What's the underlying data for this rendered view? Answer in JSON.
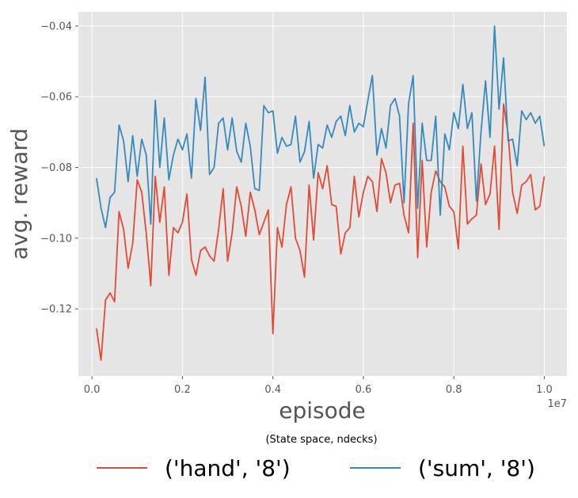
{
  "chart_data": {
    "type": "line",
    "xlabel": "episode",
    "ylabel": "avg. reward",
    "x_offset_label": "1e7",
    "xlim": [
      -0.03,
      1.05
    ],
    "ylim": [
      -0.139,
      -0.036
    ],
    "x_ticks": [
      0.0,
      0.2,
      0.4,
      0.6,
      0.8,
      1.0
    ],
    "x_tick_labels": [
      "0.0",
      "0.2",
      "0.4",
      "0.6",
      "0.8",
      "1.0"
    ],
    "y_ticks": [
      -0.12,
      -0.1,
      -0.08,
      -0.06,
      -0.04
    ],
    "y_tick_labels": [
      "−0.12",
      "−0.10",
      "−0.08",
      "−0.06",
      "−0.04"
    ],
    "grid": true,
    "legend": {
      "title": "(State space, ndecks)",
      "placement": "bottom-center"
    },
    "series": [
      {
        "name": "('hand', '8')",
        "color": "#E24A33",
        "points": [
          [
            0.01,
            -0.1255
          ],
          [
            0.02,
            -0.1345
          ],
          [
            0.03,
            -0.1175
          ],
          [
            0.04,
            -0.1155
          ],
          [
            0.05,
            -0.118
          ],
          [
            0.06,
            -0.0925
          ],
          [
            0.07,
            -0.0975
          ],
          [
            0.08,
            -0.1085
          ],
          [
            0.09,
            -0.1015
          ],
          [
            0.1,
            -0.0835
          ],
          [
            0.11,
            -0.087
          ],
          [
            0.12,
            -0.0985
          ],
          [
            0.13,
            -0.1135
          ],
          [
            0.14,
            -0.0825
          ],
          [
            0.15,
            -0.0955
          ],
          [
            0.16,
            -0.0855
          ],
          [
            0.17,
            -0.1105
          ],
          [
            0.18,
            -0.097
          ],
          [
            0.19,
            -0.0985
          ],
          [
            0.2,
            -0.0955
          ],
          [
            0.21,
            -0.0875
          ],
          [
            0.22,
            -0.106
          ],
          [
            0.23,
            -0.1105
          ],
          [
            0.24,
            -0.1035
          ],
          [
            0.25,
            -0.1025
          ],
          [
            0.26,
            -0.105
          ],
          [
            0.27,
            -0.1065
          ],
          [
            0.28,
            -0.0975
          ],
          [
            0.29,
            -0.086
          ],
          [
            0.3,
            -0.1065
          ],
          [
            0.31,
            -0.0985
          ],
          [
            0.32,
            -0.0855
          ],
          [
            0.33,
            -0.091
          ],
          [
            0.34,
            -0.0995
          ],
          [
            0.35,
            -0.087
          ],
          [
            0.36,
            -0.092
          ],
          [
            0.37,
            -0.099
          ],
          [
            0.38,
            -0.0955
          ],
          [
            0.39,
            -0.092
          ],
          [
            0.4,
            -0.127
          ],
          [
            0.41,
            -0.097
          ],
          [
            0.42,
            -0.1025
          ],
          [
            0.43,
            -0.0905
          ],
          [
            0.44,
            -0.0855
          ],
          [
            0.45,
            -0.1
          ],
          [
            0.46,
            -0.1035
          ],
          [
            0.47,
            -0.111
          ],
          [
            0.48,
            -0.085
          ],
          [
            0.49,
            -0.1005
          ],
          [
            0.5,
            -0.0815
          ],
          [
            0.51,
            -0.086
          ],
          [
            0.52,
            -0.0795
          ],
          [
            0.53,
            -0.0905
          ],
          [
            0.54,
            -0.091
          ],
          [
            0.55,
            -0.1045
          ],
          [
            0.56,
            -0.0985
          ],
          [
            0.57,
            -0.097
          ],
          [
            0.58,
            -0.0825
          ],
          [
            0.59,
            -0.094
          ],
          [
            0.6,
            -0.087
          ],
          [
            0.61,
            -0.0825
          ],
          [
            0.62,
            -0.084
          ],
          [
            0.63,
            -0.0925
          ],
          [
            0.64,
            -0.0775
          ],
          [
            0.65,
            -0.0815
          ],
          [
            0.66,
            -0.09
          ],
          [
            0.67,
            -0.085
          ],
          [
            0.68,
            -0.0845
          ],
          [
            0.69,
            -0.0935
          ],
          [
            0.7,
            -0.0985
          ],
          [
            0.71,
            -0.0675
          ],
          [
            0.72,
            -0.1055
          ],
          [
            0.73,
            -0.078
          ],
          [
            0.74,
            -0.1025
          ],
          [
            0.75,
            -0.087
          ],
          [
            0.76,
            -0.081
          ],
          [
            0.77,
            -0.084
          ],
          [
            0.78,
            -0.0855
          ],
          [
            0.79,
            -0.091
          ],
          [
            0.8,
            -0.0925
          ],
          [
            0.81,
            -0.103
          ],
          [
            0.82,
            -0.074
          ],
          [
            0.83,
            -0.096
          ],
          [
            0.84,
            -0.0945
          ],
          [
            0.85,
            -0.0935
          ],
          [
            0.86,
            -0.079
          ],
          [
            0.87,
            -0.0905
          ],
          [
            0.88,
            -0.0875
          ],
          [
            0.89,
            -0.074
          ],
          [
            0.9,
            -0.0975
          ],
          [
            0.91,
            -0.062
          ],
          [
            0.92,
            -0.0705
          ],
          [
            0.93,
            -0.087
          ],
          [
            0.94,
            -0.093
          ],
          [
            0.95,
            -0.085
          ],
          [
            0.96,
            -0.084
          ],
          [
            0.97,
            -0.082
          ],
          [
            0.98,
            -0.092
          ],
          [
            0.99,
            -0.091
          ],
          [
            1.0,
            -0.0825
          ]
        ]
      },
      {
        "name": "('sum', '8')",
        "color": "#348ABD",
        "points": [
          [
            0.01,
            -0.083
          ],
          [
            0.02,
            -0.0915
          ],
          [
            0.03,
            -0.097
          ],
          [
            0.04,
            -0.0885
          ],
          [
            0.05,
            -0.087
          ],
          [
            0.06,
            -0.068
          ],
          [
            0.07,
            -0.0725
          ],
          [
            0.08,
            -0.084
          ],
          [
            0.09,
            -0.071
          ],
          [
            0.1,
            -0.0825
          ],
          [
            0.11,
            -0.072
          ],
          [
            0.12,
            -0.0765
          ],
          [
            0.13,
            -0.096
          ],
          [
            0.14,
            -0.061
          ],
          [
            0.15,
            -0.08
          ],
          [
            0.16,
            -0.066
          ],
          [
            0.17,
            -0.0835
          ],
          [
            0.18,
            -0.0765
          ],
          [
            0.19,
            -0.072
          ],
          [
            0.2,
            -0.075
          ],
          [
            0.21,
            -0.0705
          ],
          [
            0.22,
            -0.083
          ],
          [
            0.23,
            -0.0605
          ],
          [
            0.24,
            -0.0695
          ],
          [
            0.25,
            -0.0545
          ],
          [
            0.26,
            -0.082
          ],
          [
            0.27,
            -0.08
          ],
          [
            0.28,
            -0.0675
          ],
          [
            0.29,
            -0.066
          ],
          [
            0.3,
            -0.075
          ],
          [
            0.31,
            -0.066
          ],
          [
            0.32,
            -0.0755
          ],
          [
            0.33,
            -0.0785
          ],
          [
            0.34,
            -0.0675
          ],
          [
            0.35,
            -0.074
          ],
          [
            0.36,
            -0.086
          ],
          [
            0.37,
            -0.0865
          ],
          [
            0.38,
            -0.0625
          ],
          [
            0.39,
            -0.0645
          ],
          [
            0.4,
            -0.064
          ],
          [
            0.41,
            -0.076
          ],
          [
            0.42,
            -0.0715
          ],
          [
            0.43,
            -0.074
          ],
          [
            0.44,
            -0.0735
          ],
          [
            0.45,
            -0.0655
          ],
          [
            0.46,
            -0.0785
          ],
          [
            0.47,
            -0.0755
          ],
          [
            0.48,
            -0.067
          ],
          [
            0.49,
            -0.083
          ],
          [
            0.5,
            -0.0735
          ],
          [
            0.51,
            -0.0745
          ],
          [
            0.52,
            -0.068
          ],
          [
            0.53,
            -0.0715
          ],
          [
            0.54,
            -0.067
          ],
          [
            0.55,
            -0.0655
          ],
          [
            0.56,
            -0.071
          ],
          [
            0.57,
            -0.0625
          ],
          [
            0.58,
            -0.07
          ],
          [
            0.59,
            -0.0675
          ],
          [
            0.6,
            -0.0685
          ],
          [
            0.61,
            -0.061
          ],
          [
            0.62,
            -0.054
          ],
          [
            0.63,
            -0.0765
          ],
          [
            0.64,
            -0.069
          ],
          [
            0.65,
            -0.0745
          ],
          [
            0.66,
            -0.0625
          ],
          [
            0.67,
            -0.0605
          ],
          [
            0.68,
            -0.0655
          ],
          [
            0.69,
            -0.09
          ],
          [
            0.7,
            -0.062
          ],
          [
            0.71,
            -0.054
          ],
          [
            0.72,
            -0.0915
          ],
          [
            0.73,
            -0.0675
          ],
          [
            0.74,
            -0.078
          ],
          [
            0.75,
            -0.078
          ],
          [
            0.76,
            -0.0655
          ],
          [
            0.77,
            -0.0935
          ],
          [
            0.78,
            -0.0705
          ],
          [
            0.79,
            -0.075
          ],
          [
            0.8,
            -0.0645
          ],
          [
            0.81,
            -0.069
          ],
          [
            0.82,
            -0.0565
          ],
          [
            0.83,
            -0.069
          ],
          [
            0.84,
            -0.0645
          ],
          [
            0.85,
            -0.0895
          ],
          [
            0.86,
            -0.07
          ],
          [
            0.87,
            -0.0555
          ],
          [
            0.88,
            -0.0715
          ],
          [
            0.89,
            -0.04
          ],
          [
            0.9,
            -0.0635
          ],
          [
            0.91,
            -0.049
          ],
          [
            0.92,
            -0.0725
          ],
          [
            0.93,
            -0.072
          ],
          [
            0.94,
            -0.0795
          ],
          [
            0.95,
            -0.064
          ],
          [
            0.96,
            -0.0665
          ],
          [
            0.97,
            -0.0645
          ],
          [
            0.98,
            -0.0675
          ],
          [
            0.99,
            -0.0655
          ],
          [
            1.0,
            -0.074
          ]
        ]
      }
    ]
  }
}
